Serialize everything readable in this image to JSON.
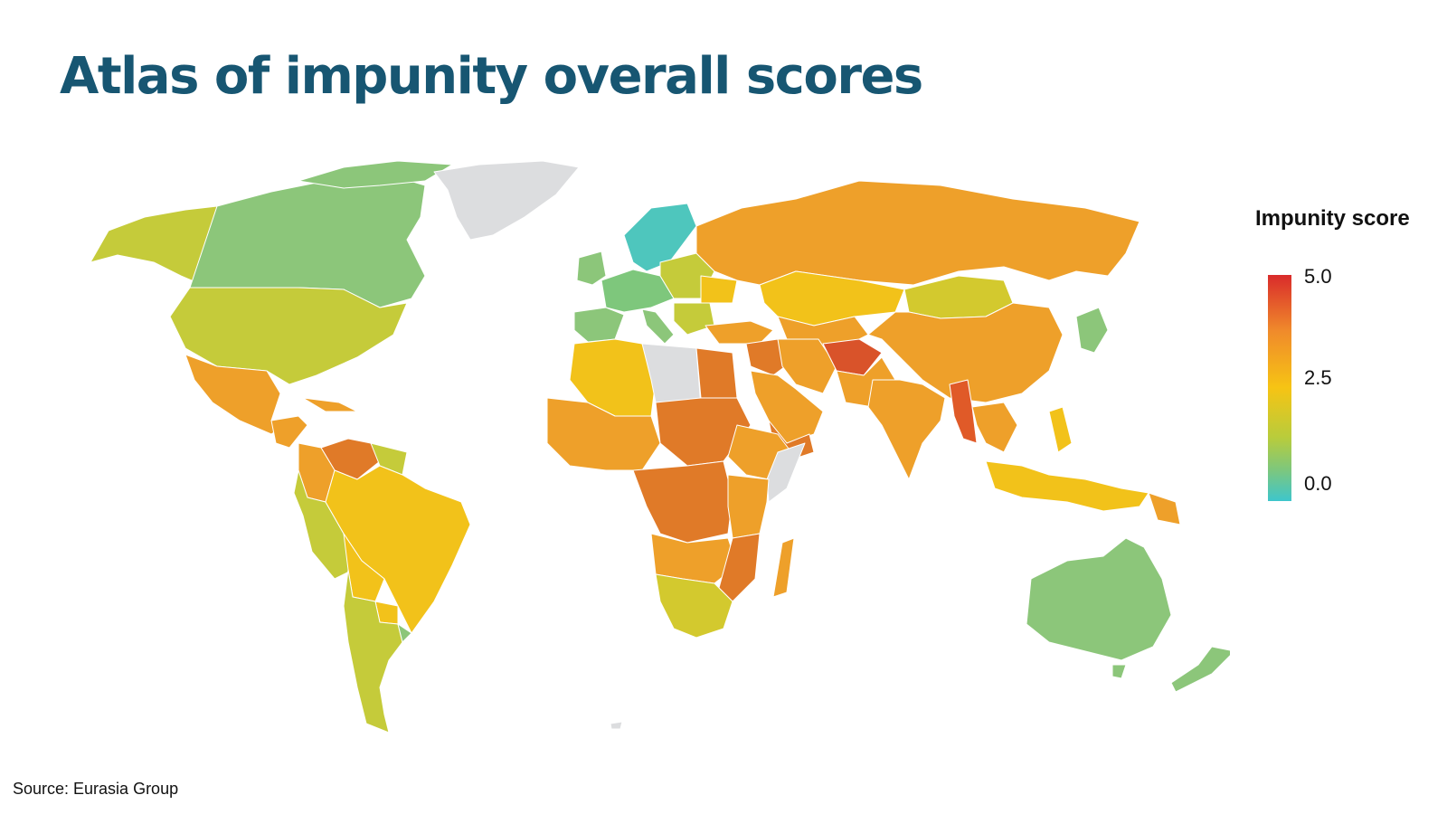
{
  "title": "Atlas of impunity overall scores",
  "legend": {
    "title": "Impunity score",
    "ticks": [
      "5.0",
      "2.5",
      "0.0"
    ]
  },
  "source": "Source: Eurasia Group",
  "colors": {
    "title": "#175672",
    "no_data": "#dcdddf",
    "high": "#d92b2b",
    "mid_high": "#f08b2b",
    "mid": "#f6c414",
    "mid_low": "#b8cc3c",
    "low": "#7ec77c",
    "lowest": "#3ec6cc"
  }
}
